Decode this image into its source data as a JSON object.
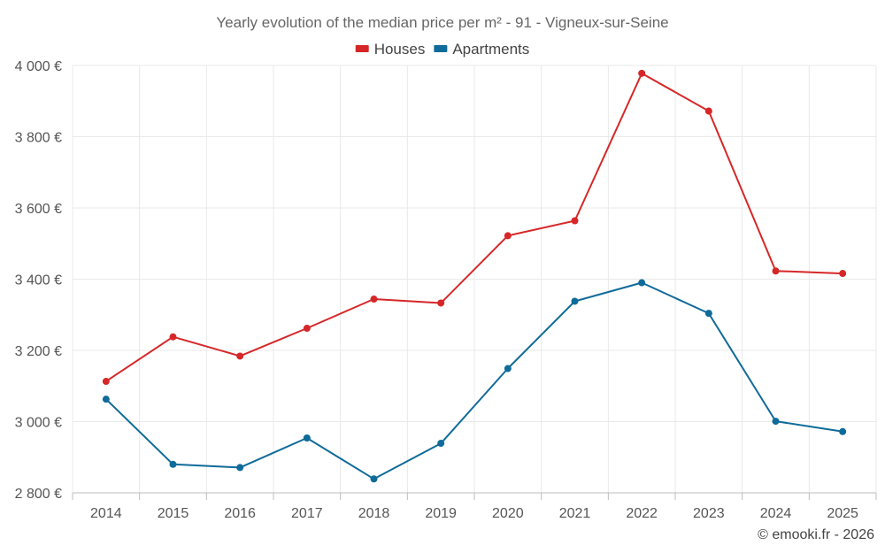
{
  "chart_data": {
    "type": "line",
    "title": "Yearly evolution of the median price per m² - 91 - Vigneux-sur-Seine",
    "categories": [
      "2014",
      "2015",
      "2016",
      "2017",
      "2018",
      "2019",
      "2020",
      "2021",
      "2022",
      "2023",
      "2024",
      "2025"
    ],
    "series": [
      {
        "name": "Houses",
        "color": "#d62728",
        "values": [
          3113,
          3238,
          3184,
          3262,
          3344,
          3333,
          3522,
          3564,
          3978,
          3872,
          3423,
          3416
        ]
      },
      {
        "name": "Apartments",
        "color": "#0f6b99",
        "values": [
          3063,
          2880,
          2871,
          2954,
          2839,
          2939,
          3149,
          3338,
          3390,
          3304,
          3001,
          2972
        ]
      }
    ],
    "ylim": [
      2800,
      4000
    ],
    "yticks": [
      2800,
      3000,
      3200,
      3400,
      3600,
      3800,
      4000
    ],
    "ytick_labels": [
      "2 800 €",
      "3 000 €",
      "3 200 €",
      "3 400 €",
      "3 600 €",
      "3 800 €",
      "4 000 €"
    ],
    "grid": true,
    "legend_position": "top-center",
    "xlabel": "",
    "ylabel": ""
  },
  "credit": "© emooki.fr - 2026"
}
